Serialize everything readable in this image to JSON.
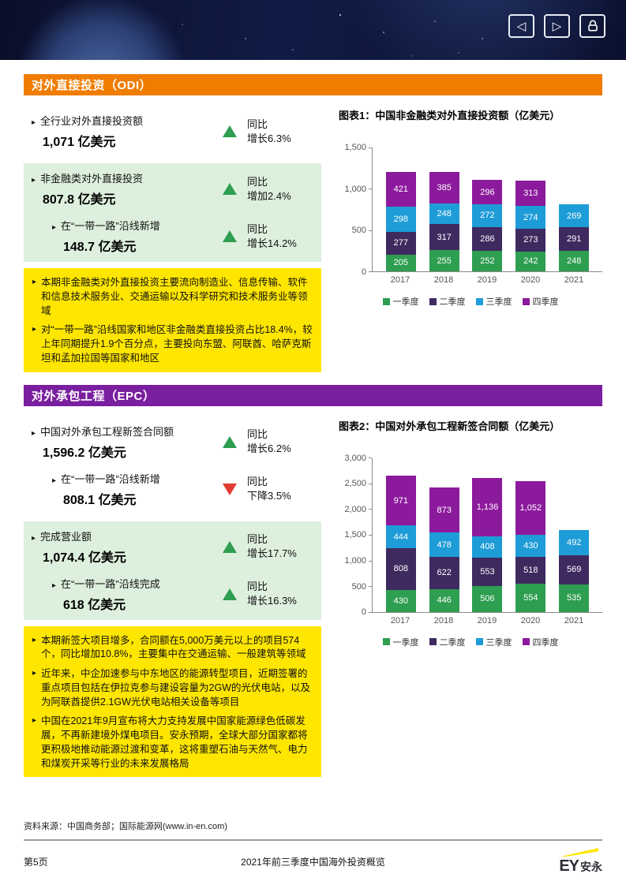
{
  "banner": {
    "nav": {
      "prev_label": "previous page",
      "next_label": "next page",
      "lock_label": "lock"
    }
  },
  "odi": {
    "header": "对外直接投资（ODI）",
    "stats": [
      {
        "label": "全行业对外直接投资额",
        "value": "1,071 亿美元",
        "trend": "up",
        "change1": "同比",
        "change2": "增长6.3%"
      },
      {
        "label": "非金融类对外直接投资",
        "value": "807.8 亿美元",
        "trend": "up",
        "change1": "同比",
        "change2": "增加2.4%"
      },
      {
        "label": "在“一带一路”沿线新增",
        "value": "148.7 亿美元",
        "trend": "up",
        "change1": "同比",
        "change2": "增长14.2%"
      }
    ],
    "notes": [
      "本期非金融类对外直接投资主要流向制造业、信息传输、软件和信息技术服务业、交通运输以及科学研究和技术服务业等领域",
      "对“一带一路”沿线国家和地区非金融类直接投资占比18.4%，较上年同期提升1.9个百分点，主要投向东盟、阿联酋、哈萨克斯坦和孟加拉国等国家和地区"
    ],
    "chart_title": "图表1：中国非金融类对外直接投资额（亿美元）"
  },
  "epc": {
    "header": "对外承包工程（EPC）",
    "stats": [
      {
        "label": "中国对外承包工程新签合同额",
        "value": "1,596.2 亿美元",
        "trend": "up",
        "change1": "同比",
        "change2": "增长6.2%"
      },
      {
        "label": "在“一带一路”沿线新增",
        "value": "808.1 亿美元",
        "trend": "down",
        "change1": "同比",
        "change2": "下降3.5%"
      },
      {
        "label": "完成营业额",
        "value": "1,074.4 亿美元",
        "trend": "up",
        "change1": "同比",
        "change2": "增长17.7%"
      },
      {
        "label": "在“一带一路”沿线完成",
        "value": "618 亿美元",
        "trend": "up",
        "change1": "同比",
        "change2": "增长16.3%"
      }
    ],
    "notes": [
      "本期新签大项目增多，合同额在5,000万美元以上的项目574个，同比增加10.8%，主要集中在交通运输、一般建筑等领域",
      "近年来，中企加速参与中东地区的能源转型项目，近期签署的重点项目包括在伊拉克参与建设容量为2GW的光伏电站，以及为阿联酋提供2.1GW光伏电站相关设备等项目",
      "中国在2021年9月宣布将大力支持发展中国家能源绿色低碳发展，不再新建境外煤电项目。安永预期，全球大部分国家都将更积极地推动能源过渡和变革，这将重塑石油与天然气、电力和煤炭开采等行业的未来发展格局"
    ],
    "chart_title": "图表2：中国对外承包工程新签合同额（亿美元）"
  },
  "chart_data": [
    {
      "type": "bar",
      "stacked": true,
      "title": "图表1：中国非金融类对外直接投资额（亿美元）",
      "categories": [
        "2017",
        "2018",
        "2019",
        "2020",
        "2021"
      ],
      "series": [
        {
          "name": "一季度",
          "color": "#2E9E50",
          "values": [
            205,
            255,
            252,
            242,
            248
          ]
        },
        {
          "name": "二季度",
          "color": "#3F2A5F",
          "values": [
            277,
            317,
            286,
            273,
            291
          ]
        },
        {
          "name": "三季度",
          "color": "#1E9CD7",
          "values": [
            298,
            248,
            272,
            274,
            269
          ]
        },
        {
          "name": "四季度",
          "color": "#8C1A9C",
          "values": [
            421,
            385,
            296,
            313,
            null
          ]
        }
      ],
      "ylim": [
        0,
        1500
      ],
      "ytick_step": 500,
      "legend_position": "bottom",
      "grid": false
    },
    {
      "type": "bar",
      "stacked": true,
      "title": "图表2：中国对外承包工程新签合同额（亿美元）",
      "categories": [
        "2017",
        "2018",
        "2019",
        "2020",
        "2021"
      ],
      "series": [
        {
          "name": "一季度",
          "color": "#2E9E50",
          "values": [
            430,
            446,
            506,
            554,
            535
          ]
        },
        {
          "name": "二季度",
          "color": "#3F2A5F",
          "values": [
            808,
            622,
            553,
            518,
            569
          ]
        },
        {
          "name": "三季度",
          "color": "#1E9CD7",
          "values": [
            444,
            478,
            408,
            430,
            492
          ]
        },
        {
          "name": "四季度",
          "color": "#8C1A9C",
          "values": [
            971,
            873,
            1136,
            1052,
            null
          ]
        }
      ],
      "ylim": [
        0,
        3000
      ],
      "ytick_step": 500,
      "legend_position": "bottom",
      "grid": false
    }
  ],
  "colors": {
    "odi_header_bg": "#F07D00",
    "epc_header_bg": "#7A1FA0",
    "green_block_bg": "#DDEFDD",
    "yellow_block_bg": "#FFE600",
    "trend_up": "#2E9E50",
    "trend_down": "#E03C31"
  },
  "footer": {
    "source": "资料来源：中国商务部；国际能源网(www.in-en.com)",
    "page": "第5页",
    "doc_title": "2021年前三季度中国海外投资概览",
    "logo_en": "EY",
    "logo_cn": "安永"
  }
}
